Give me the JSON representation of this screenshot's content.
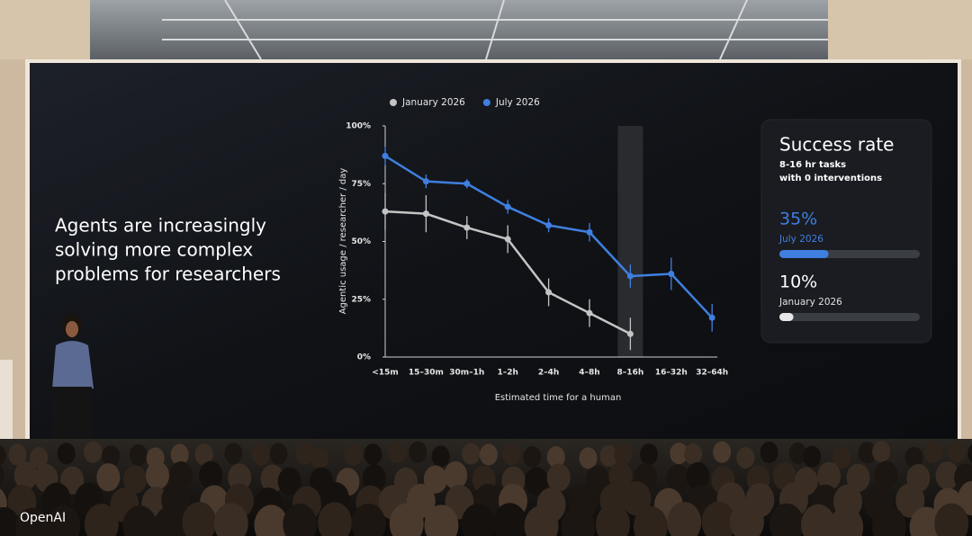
{
  "headline": [
    "Agents are increasingly",
    "solving more complex",
    "problems for researchers"
  ],
  "chart_data": {
    "type": "line",
    "categories": [
      "<15m",
      "15–30m",
      "30m–1h",
      "1–2h",
      "2–4h",
      "4–8h",
      "8–16h",
      "16–32h",
      "32–64h"
    ],
    "series": [
      {
        "name": "January 2026",
        "color": "#c4c4c4",
        "values": [
          63,
          62,
          56,
          51,
          28,
          19,
          10,
          null,
          null
        ],
        "errors": [
          8,
          8,
          5,
          6,
          6,
          6,
          7,
          null,
          null
        ]
      },
      {
        "name": "July 2026",
        "color": "#3f7fe0",
        "values": [
          87,
          76,
          75,
          65,
          57,
          54,
          35,
          36,
          17
        ],
        "errors": [
          4,
          3,
          2,
          3,
          3,
          4,
          5,
          7,
          6
        ]
      }
    ],
    "ylim": [
      0,
      100
    ],
    "yticks": [
      {
        "value": 0,
        "label": "0%"
      },
      {
        "value": 25,
        "label": "25%"
      },
      {
        "value": 50,
        "label": "50%"
      },
      {
        "value": 75,
        "label": "75%"
      },
      {
        "value": 100,
        "label": "100%"
      }
    ],
    "x_label": "Estimated time for a human",
    "y_label": "Agentic usage / researcher / day",
    "highlight_category": "8–16h",
    "legend": "top"
  },
  "card": {
    "title": "Success rate",
    "subtitle": [
      "8-16 hr tasks",
      "with 0 interventions"
    ],
    "stats": [
      {
        "value": 35,
        "value_label": "35%",
        "label": "July 2026",
        "color": "#3f7fe0"
      },
      {
        "value": 10,
        "value_label": "10%",
        "label": "January 2026",
        "color": "#e6e6e6"
      }
    ]
  },
  "watermark": "OpenAI"
}
